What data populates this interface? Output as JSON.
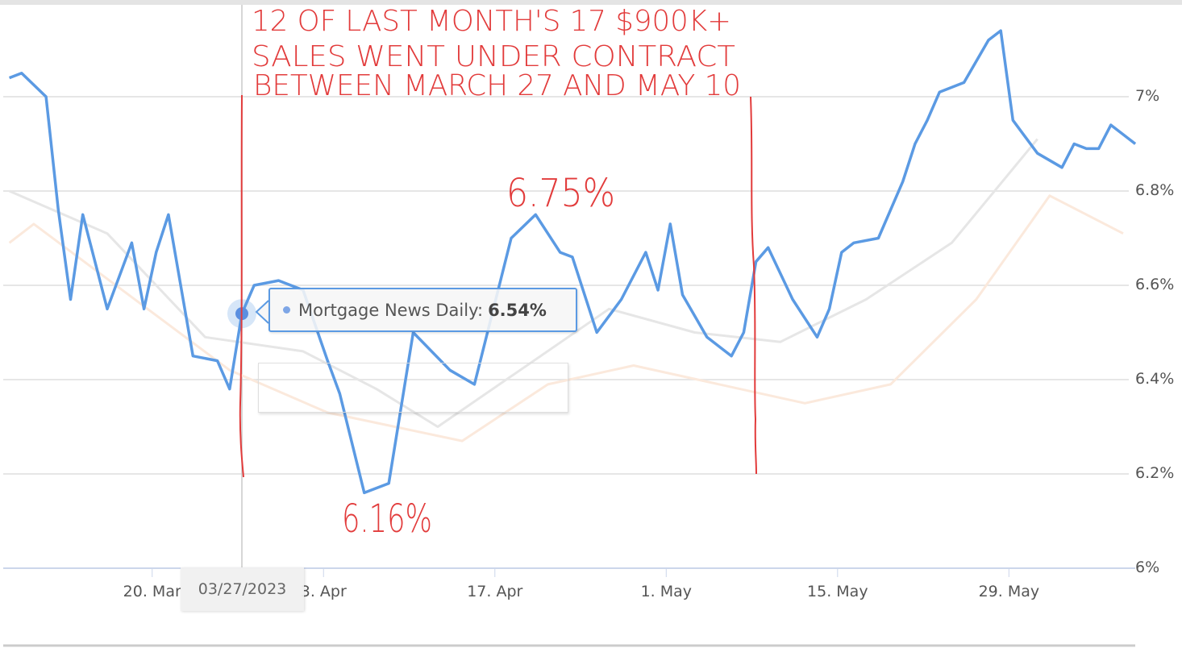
{
  "chart_data": {
    "type": "line",
    "title": "",
    "xlabel": "",
    "ylabel": "",
    "ylim": [
      6.0,
      7.2
    ],
    "y_ticks": [
      "6%",
      "6.2%",
      "6.4%",
      "6.6%",
      "6.8%",
      "7%"
    ],
    "y_tick_values": [
      6.0,
      6.2,
      6.4,
      6.6,
      6.8,
      7.0
    ],
    "x_ticks": [
      "20. Mar",
      "3. Apr",
      "17. Apr",
      "1. May",
      "15. May",
      "29. May"
    ],
    "x_tick_dates": [
      "2023-03-20",
      "2023-04-03",
      "2023-04-17",
      "2023-05-01",
      "2023-05-15",
      "2023-05-29"
    ],
    "grid": true,
    "y_axis_side": "right",
    "series": [
      {
        "name": "Mortgage News Daily",
        "color": "#5b9ae3",
        "points": [
          [
            "2023-03-08",
            7.04
          ],
          [
            "2023-03-09",
            7.05
          ],
          [
            "2023-03-11",
            7.0
          ],
          [
            "2023-03-12",
            6.76
          ],
          [
            "2023-03-13",
            6.57
          ],
          [
            "2023-03-14",
            6.75
          ],
          [
            "2023-03-16",
            6.55
          ],
          [
            "2023-03-18",
            6.69
          ],
          [
            "2023-03-19",
            6.55
          ],
          [
            "2023-03-20",
            6.67
          ],
          [
            "2023-03-21",
            6.75
          ],
          [
            "2023-03-23",
            6.45
          ],
          [
            "2023-03-25",
            6.44
          ],
          [
            "2023-03-26",
            6.38
          ],
          [
            "2023-03-27",
            6.54
          ],
          [
            "2023-03-28",
            6.6
          ],
          [
            "2023-03-30",
            6.61
          ],
          [
            "2023-04-01",
            6.59
          ],
          [
            "2023-04-03",
            6.44
          ],
          [
            "2023-04-04",
            6.37
          ],
          [
            "2023-04-06",
            6.16
          ],
          [
            "2023-04-08",
            6.18
          ],
          [
            "2023-04-10",
            6.5
          ],
          [
            "2023-04-13",
            6.42
          ],
          [
            "2023-04-15",
            6.39
          ],
          [
            "2023-04-18",
            6.7
          ],
          [
            "2023-04-20",
            6.75
          ],
          [
            "2023-04-22",
            6.67
          ],
          [
            "2023-04-23",
            6.66
          ],
          [
            "2023-04-25",
            6.5
          ],
          [
            "2023-04-27",
            6.57
          ],
          [
            "2023-04-29",
            6.67
          ],
          [
            "2023-04-30",
            6.59
          ],
          [
            "2023-05-01",
            6.73
          ],
          [
            "2023-05-02",
            6.58
          ],
          [
            "2023-05-04",
            6.49
          ],
          [
            "2023-05-06",
            6.45
          ],
          [
            "2023-05-07",
            6.5
          ],
          [
            "2023-05-08",
            6.65
          ],
          [
            "2023-05-09",
            6.68
          ],
          [
            "2023-05-11",
            6.57
          ],
          [
            "2023-05-13",
            6.49
          ],
          [
            "2023-05-14",
            6.55
          ],
          [
            "2023-05-15",
            6.67
          ],
          [
            "2023-05-16",
            6.69
          ],
          [
            "2023-05-18",
            6.7
          ],
          [
            "2023-05-20",
            6.82
          ],
          [
            "2023-05-21",
            6.9
          ],
          [
            "2023-05-22",
            6.95
          ],
          [
            "2023-05-23",
            7.01
          ],
          [
            "2023-05-25",
            7.03
          ],
          [
            "2023-05-27",
            7.12
          ],
          [
            "2023-05-28",
            7.14
          ],
          [
            "2023-05-29",
            6.95
          ],
          [
            "2023-05-31",
            6.88
          ],
          [
            "2023-06-02",
            6.85
          ],
          [
            "2023-06-03",
            6.9
          ],
          [
            "2023-06-04",
            6.89
          ],
          [
            "2023-06-05",
            6.89
          ],
          [
            "2023-06-06",
            6.94
          ],
          [
            "2023-06-08",
            6.9
          ]
        ]
      },
      {
        "color": "#e6e6e6",
        "points": [
          [
            "2023-03-08",
            6.8
          ],
          [
            "2023-03-16",
            6.71
          ],
          [
            "2023-03-24",
            6.49
          ],
          [
            "2023-04-01",
            6.46
          ],
          [
            "2023-04-07",
            6.38
          ],
          [
            "2023-04-12",
            6.3
          ],
          [
            "2023-04-26",
            6.55
          ],
          [
            "2023-05-03",
            6.5
          ],
          [
            "2023-05-10",
            6.48
          ],
          [
            "2023-05-17",
            6.57
          ],
          [
            "2023-05-24",
            6.69
          ],
          [
            "2023-05-31",
            6.91
          ]
        ]
      },
      {
        "color": "#fbe9dc",
        "points": [
          [
            "2023-03-08",
            6.69
          ],
          [
            "2023-03-10",
            6.73
          ],
          [
            "2023-03-26",
            6.42
          ],
          [
            "2023-04-03",
            6.33
          ],
          [
            "2023-04-14",
            6.27
          ],
          [
            "2023-04-21",
            6.39
          ],
          [
            "2023-04-28",
            6.43
          ],
          [
            "2023-05-12",
            6.35
          ],
          [
            "2023-05-19",
            6.39
          ],
          [
            "2023-05-26",
            6.57
          ],
          [
            "2023-06-01",
            6.79
          ],
          [
            "2023-06-07",
            6.71
          ]
        ]
      }
    ],
    "hover": {
      "date": "2023-03-27",
      "date_label": "03/27/2023",
      "series_label": "Mortgage News Daily:",
      "value": 6.54,
      "value_label": "6.54%"
    },
    "annotations": {
      "color": "#e23b3b",
      "lines": [
        "12 OF LAST MONTH'S 17 $900K+",
        "SALES WENT UNDER CONTRACT",
        "BETWEEN MARCH 27 AND MAY 10"
      ],
      "peak_label": "6.75%",
      "trough_label": "6.16%",
      "range_start": "2023-03-27",
      "range_end": "2023-05-10"
    }
  }
}
